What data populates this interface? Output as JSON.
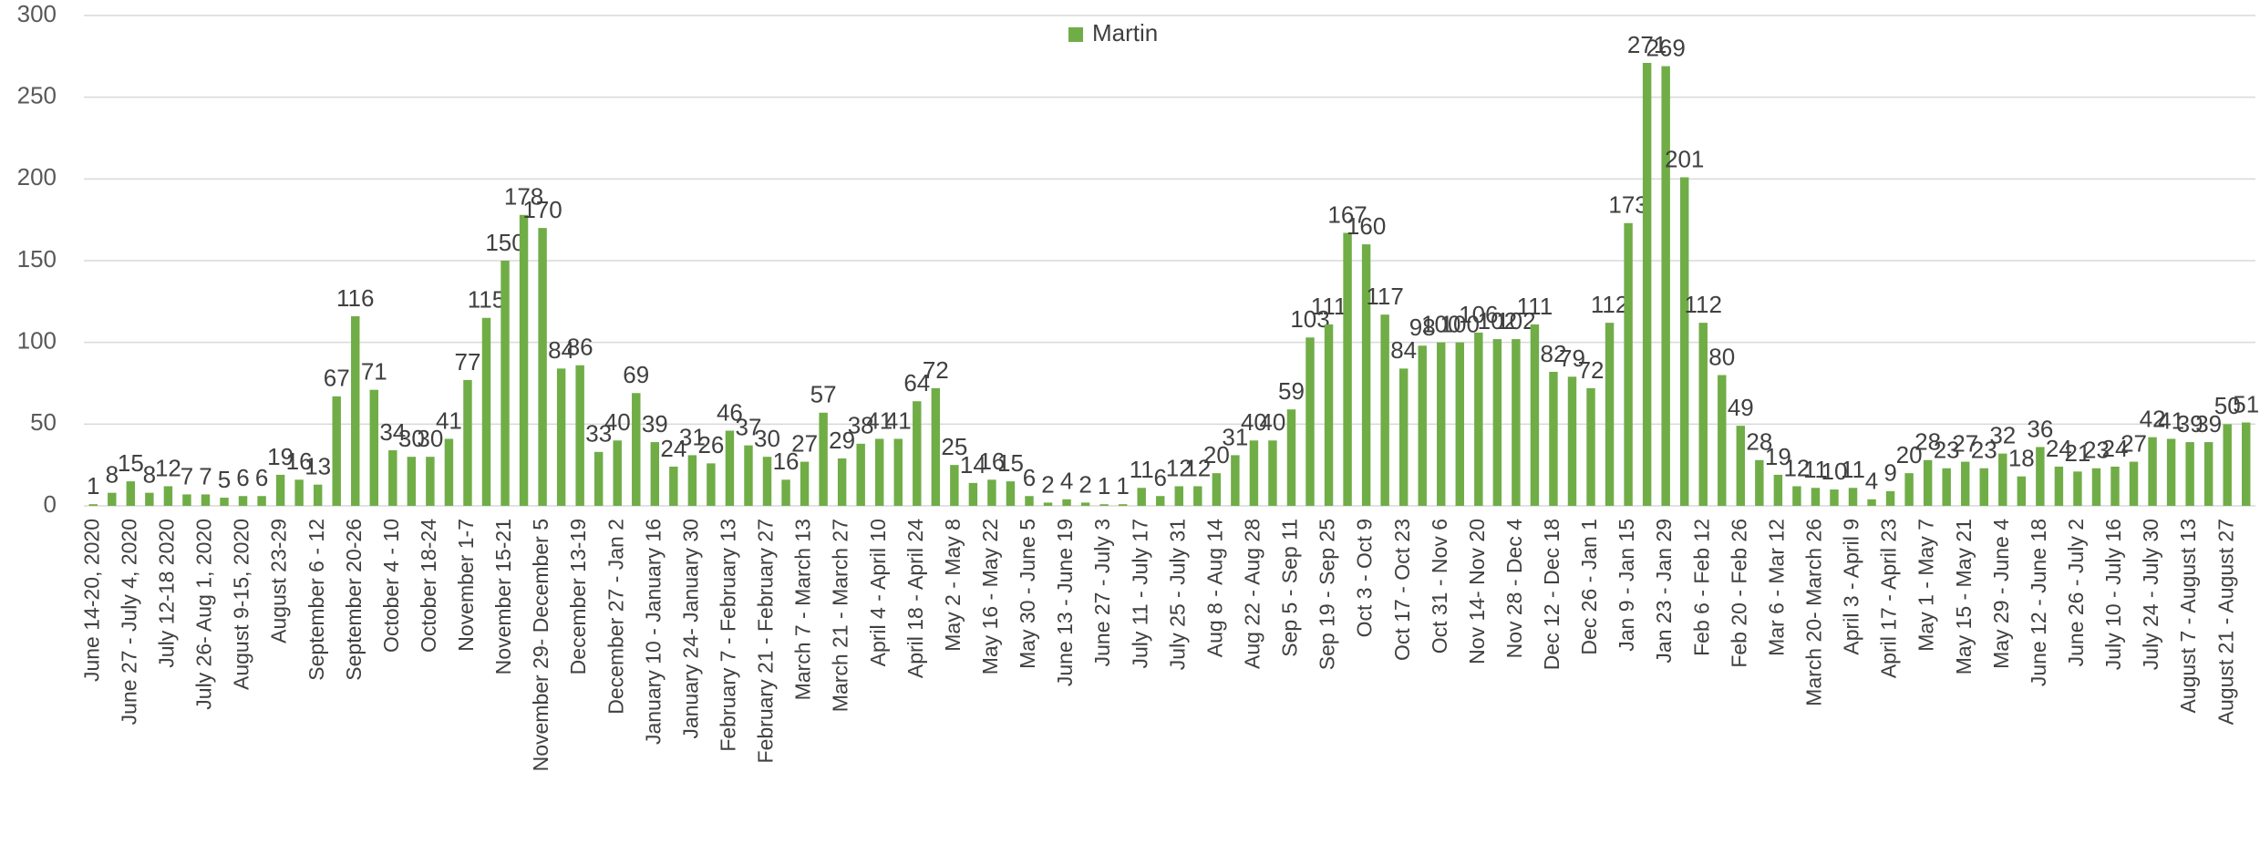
{
  "chart_data": {
    "type": "bar",
    "series": [
      {
        "name": "Martin",
        "color": "#70ad47",
        "values": [
          1,
          8,
          15,
          8,
          12,
          7,
          7,
          5,
          6,
          6,
          19,
          16,
          13,
          67,
          116,
          71,
          34,
          30,
          30,
          41,
          77,
          115,
          150,
          178,
          170,
          84,
          86,
          33,
          40,
          69,
          39,
          24,
          31,
          26,
          46,
          37,
          30,
          16,
          27,
          57,
          29,
          38,
          41,
          41,
          64,
          72,
          25,
          14,
          16,
          15,
          6,
          2,
          4,
          2,
          1,
          1,
          11,
          6,
          12,
          12,
          20,
          31,
          40,
          40,
          59,
          103,
          111,
          167,
          160,
          117,
          84,
          98,
          100,
          100,
          106,
          102,
          102,
          111,
          82,
          79,
          72,
          112,
          173,
          271,
          269,
          201,
          112,
          80,
          49,
          28,
          19,
          12,
          11,
          10,
          11,
          4,
          9,
          20,
          28,
          23,
          27,
          23,
          32,
          18,
          36,
          24,
          21,
          23,
          24,
          27,
          42,
          41,
          39,
          39,
          50,
          51
        ]
      }
    ],
    "categories": [
      "June 14-20, 2020",
      null,
      "June 27 - July 4, 2020",
      null,
      "July 12-18 2020",
      null,
      "July 26- Aug 1, 2020",
      null,
      "August 9-15, 2020",
      null,
      "August 23-29",
      null,
      "September 6 - 12",
      null,
      "September 20-26",
      null,
      "October 4 - 10",
      null,
      "October 18-24",
      null,
      "November 1-7",
      null,
      "November 15-21",
      null,
      "November 29- December 5",
      null,
      "December 13-19",
      null,
      "December 27 - Jan 2",
      null,
      "January 10 - January 16",
      null,
      "January 24- January 30",
      null,
      "February 7 - February 13",
      null,
      "February 21 - February 27",
      null,
      "March 7 - March 13",
      null,
      "March 21 - March 27",
      null,
      "April 4 - April 10",
      null,
      "April 18 - April 24",
      null,
      "May 2 - May 8",
      null,
      "May 16 - May 22",
      null,
      "May 30 - June 5",
      null,
      "June 13 - June 19",
      null,
      "June 27 - July 3",
      null,
      "July 11 - July 17",
      null,
      "July 25 - July 31",
      null,
      "Aug 8 - Aug 14",
      null,
      "Aug 22 - Aug 28",
      null,
      "Sep 5 - Sep 11",
      null,
      "Sep 19 - Sep 25",
      null,
      "Oct 3 - Oct 9",
      null,
      "Oct 17 - Oct 23",
      null,
      "Oct 31 - Nov 6",
      null,
      "Nov 14- Nov 20",
      null,
      "Nov 28 - Dec 4",
      null,
      "Dec 12 - Dec 18",
      null,
      "Dec 26 - Jan 1",
      null,
      "Jan 9 - Jan 15",
      null,
      "Jan 23 - Jan 29",
      null,
      "Feb 6 - Feb 12",
      null,
      "Feb 20 - Feb 26",
      null,
      "Mar 6 - Mar 12",
      null,
      "March 20- March 26",
      null,
      "April 3 - April 9",
      null,
      "April 17 - April 23",
      null,
      "May 1 - May 7",
      null,
      "May 15 - May 21",
      null,
      "May 29 - June 4",
      null,
      "June 12 - June 18",
      null,
      "June 26 - July 2",
      null,
      "July 10 - July 16",
      null,
      "July 24 - July 30",
      null,
      "August  7 - August 13",
      null,
      "August  21 - August 27",
      null
    ],
    "ylim": [
      0,
      300
    ],
    "yticks": [
      0,
      50,
      100,
      150,
      200,
      250,
      300
    ],
    "grid": true,
    "legend": "top"
  }
}
